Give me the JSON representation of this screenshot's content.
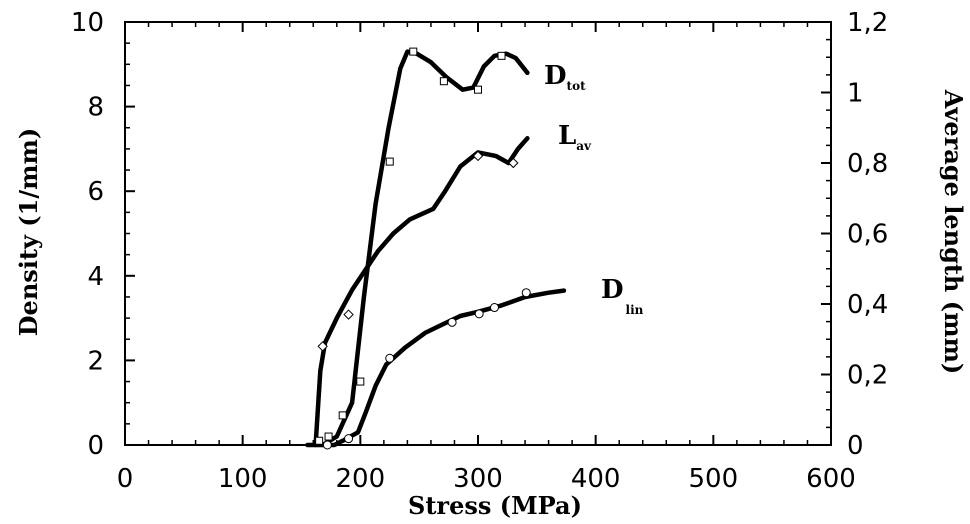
{
  "chart_data": {
    "type": "line",
    "title": "",
    "xlabel": "Stress (MPa)",
    "ylabel": "Density (1/mm)",
    "y2label": "Average length (mm)",
    "xlim": [
      0,
      600
    ],
    "ylim": [
      0,
      10
    ],
    "y2lim": [
      0,
      1.2
    ],
    "xticks": [
      "0",
      "100",
      "200",
      "300",
      "400",
      "500",
      "600"
    ],
    "yticks": [
      "0",
      "2",
      "4",
      "6",
      "8",
      "10"
    ],
    "y2ticks": [
      "0",
      "0,2",
      "0,4",
      "0,6",
      "0,8",
      "1",
      "1,2"
    ],
    "grid": false,
    "series": [
      {
        "name": "D",
        "subscript": "tot",
        "axis": "left",
        "marker": "square",
        "line": [
          [
            155,
            0
          ],
          [
            168,
            0
          ],
          [
            180,
            0.2
          ],
          [
            193,
            1.0
          ],
          [
            203,
            3.5
          ],
          [
            213,
            5.7
          ],
          [
            224,
            7.5
          ],
          [
            234,
            8.9
          ],
          [
            240,
            9.3
          ],
          [
            248,
            9.25
          ],
          [
            260,
            9.05
          ],
          [
            273,
            8.7
          ],
          [
            287,
            8.4
          ],
          [
            296,
            8.45
          ],
          [
            305,
            8.95
          ],
          [
            314,
            9.2
          ],
          [
            324,
            9.25
          ],
          [
            332,
            9.15
          ],
          [
            342,
            8.8
          ]
        ],
        "points": [
          [
            165,
            0.1
          ],
          [
            173,
            0.2
          ],
          [
            185,
            0.7
          ],
          [
            200,
            1.5
          ],
          [
            225,
            6.7
          ],
          [
            245,
            9.3
          ],
          [
            271,
            8.6
          ],
          [
            300,
            8.4
          ],
          [
            320,
            9.2
          ]
        ]
      },
      {
        "name": "L",
        "subscript": "av",
        "axis": "right",
        "marker": "diamond",
        "line": [
          [
            162,
            0
          ],
          [
            166,
            0.21
          ],
          [
            170,
            0.29
          ],
          [
            180,
            0.36
          ],
          [
            193,
            0.44
          ],
          [
            205,
            0.5
          ],
          [
            215,
            0.55
          ],
          [
            228,
            0.6
          ],
          [
            242,
            0.64
          ],
          [
            262,
            0.67
          ],
          [
            272,
            0.72
          ],
          [
            285,
            0.79
          ],
          [
            300,
            0.83
          ],
          [
            315,
            0.82
          ],
          [
            326,
            0.8
          ],
          [
            334,
            0.84
          ],
          [
            342,
            0.87
          ]
        ],
        "points": [
          [
            168,
            0.28
          ],
          [
            190,
            0.37
          ],
          [
            300,
            0.82
          ],
          [
            330,
            0.8
          ]
        ]
      },
      {
        "name": "D",
        "subscript": "lin",
        "axis": "left",
        "marker": "circle",
        "line": [
          [
            168,
            0
          ],
          [
            178,
            0
          ],
          [
            185,
            0.1
          ],
          [
            198,
            0.3
          ],
          [
            205,
            0.8
          ],
          [
            213,
            1.4
          ],
          [
            222,
            1.9
          ],
          [
            238,
            2.3
          ],
          [
            255,
            2.65
          ],
          [
            270,
            2.85
          ],
          [
            285,
            3.05
          ],
          [
            300,
            3.15
          ],
          [
            320,
            3.3
          ],
          [
            340,
            3.5
          ],
          [
            360,
            3.6
          ],
          [
            373,
            3.65
          ]
        ],
        "points": [
          [
            172,
            0
          ],
          [
            190,
            0.15
          ],
          [
            225,
            2.05
          ],
          [
            278,
            2.9
          ],
          [
            301,
            3.1
          ],
          [
            314,
            3.25
          ],
          [
            341,
            3.6
          ]
        ]
      }
    ]
  }
}
